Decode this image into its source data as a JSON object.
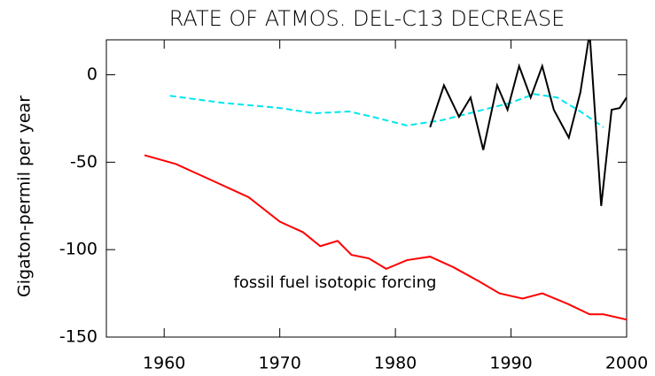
{
  "chart_data": {
    "type": "line",
    "title": "RATE OF ATMOS. DEL-C13 DECREASE",
    "y_label": "Gigaton-permil  per year",
    "annotation": "fossil fuel isotopic forcing",
    "xlim": [
      1955,
      2000
    ],
    "xticks": [
      1960,
      1970,
      1980,
      1990,
      2000
    ],
    "ylim": [
      -150,
      20
    ],
    "yticks": [
      0,
      -50,
      -100,
      -150
    ],
    "series": [
      {
        "color": "#ff0000",
        "dash": false,
        "x": [
          1958.3,
          1961,
          1964,
          1967.3,
          1970,
          1972,
          1973.5,
          1975,
          1976.2,
          1977.7,
          1979.2,
          1981,
          1983,
          1985,
          1987.2,
          1989,
          1991,
          1992.7,
          1994.9,
          1996.8,
          1998,
          2000
        ],
        "values": [
          -46,
          -51,
          -60,
          -70,
          -84,
          -90,
          -98,
          -95,
          -103,
          -105,
          -111,
          -106,
          -104,
          -110,
          -118,
          -125,
          -128,
          -125,
          -131,
          -137,
          -137,
          -140
        ]
      },
      {
        "color": "#00e5ee",
        "dash": true,
        "x": [
          1960.5,
          1965,
          1970,
          1973,
          1976,
          1978,
          1981,
          1984,
          1987,
          1990,
          1992,
          1994,
          1996,
          1998
        ],
        "values": [
          -12,
          -16,
          -19,
          -22,
          -21,
          -24,
          -29,
          -26,
          -21,
          -16,
          -11,
          -13,
          -21,
          -30
        ]
      },
      {
        "color": "#000000",
        "dash": false,
        "x": [
          1983,
          1984.2,
          1985.5,
          1986.5,
          1987.6,
          1988.8,
          1989.7,
          1990.7,
          1991.7,
          1992.7,
          1993.7,
          1995,
          1996,
          1996.8,
          1997.8,
          1998.7,
          1999.4,
          2000
        ],
        "values": [
          -30,
          -6,
          -24,
          -13,
          -43,
          -6,
          -20,
          5,
          -13,
          5,
          -20,
          -36,
          -10,
          24,
          -75,
          -20,
          -19,
          -13
        ]
      }
    ]
  }
}
